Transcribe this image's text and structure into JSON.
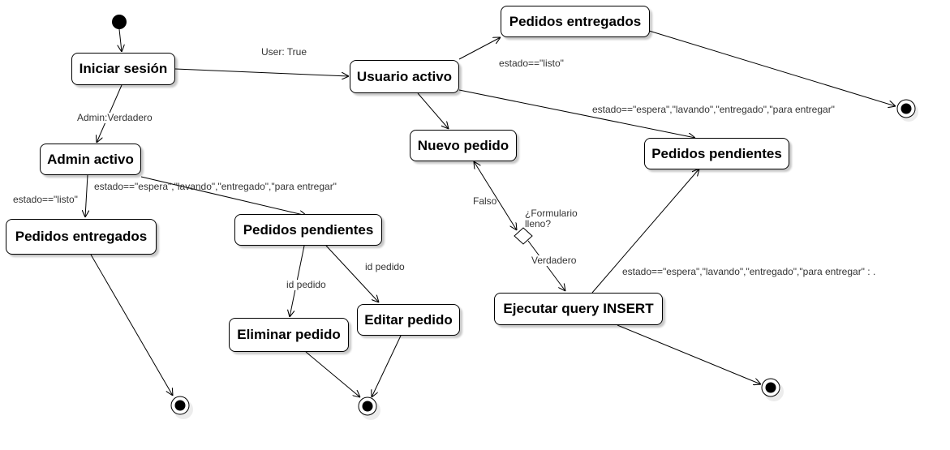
{
  "nodes": {
    "iniciar_sesion": "Iniciar sesión",
    "usuario_activo": "Usuario activo",
    "pedidos_entregados_user": "Pedidos entregados",
    "nuevo_pedido": "Nuevo pedido",
    "pedidos_pendientes_user": "Pedidos pendientes",
    "ejecutar_query": "Ejecutar query INSERT",
    "admin_activo": "Admin activo",
    "pedidos_entregados_admin": "Pedidos entregados",
    "pedidos_pendientes_admin": "Pedidos pendientes",
    "eliminar_pedido": "Eliminar pedido",
    "editar_pedido": "Editar pedido"
  },
  "decision": {
    "label_line1": "¿Formulario",
    "label_line2": "lleno?"
  },
  "edge_labels": {
    "user_true": "User: True",
    "admin_verdadero": "Admin:Verdadero",
    "user_listo": "estado==\"listo\"",
    "user_pendientes": "estado==\"espera\",\"lavando\",\"entregado\",\"para entregar\"",
    "admin_listo": "estado==\"listo\"",
    "admin_pendientes": "estado==\"espera\",\"lavando\",\"entregado\",\"para entregar\"",
    "falso": "Falso",
    "verdadero": "Verdadero",
    "insert_pendientes": "estado==\"espera\",\"lavando\",\"entregado\",\"para entregar\" : .",
    "id_pedido_eliminar": "id pedido",
    "id_pedido_editar": "id pedido"
  }
}
